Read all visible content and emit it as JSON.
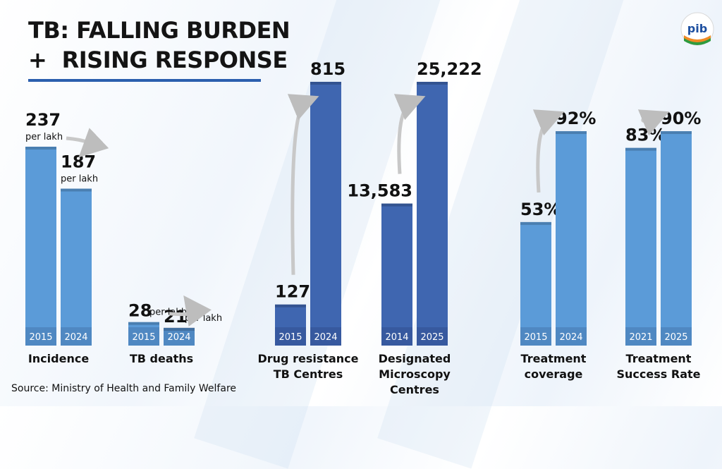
{
  "title_line1": "TB: FALLING BURDEN",
  "title_line2": "+  RISING RESPONSE",
  "source": "Source: Ministry of Health and Family Welfare",
  "logo_text": "pib",
  "colors": {
    "light_bar": "#5b9bd8",
    "dark_bar": "#3f66b0",
    "accent": "#2b5fae"
  },
  "chart_data": [
    {
      "type": "bar",
      "group": "Incidence",
      "category_lines": [
        "Incidence"
      ],
      "years": [
        "2015",
        "2024"
      ],
      "values": [
        237,
        187
      ],
      "labels": [
        "237",
        "187"
      ],
      "unit": "per lakh",
      "trend": "down"
    },
    {
      "type": "bar",
      "group": "TB deaths",
      "category_lines": [
        "TB deaths"
      ],
      "years": [
        "2015",
        "2024"
      ],
      "values": [
        28,
        21
      ],
      "labels": [
        "28",
        "21"
      ],
      "unit": "per lakh",
      "trend": "down"
    },
    {
      "type": "bar",
      "group": "Drug resistance TB Centres",
      "category_lines": [
        "Drug resistance",
        "TB Centres"
      ],
      "years": [
        "2015",
        "2024"
      ],
      "values": [
        127,
        815
      ],
      "labels": [
        "127",
        "815"
      ],
      "unit": "",
      "trend": "up"
    },
    {
      "type": "bar",
      "group": "Designated Microscopy Centres",
      "category_lines": [
        "Designated",
        "Microscopy",
        "Centres"
      ],
      "years": [
        "2014",
        "2025"
      ],
      "values": [
        13583,
        25222
      ],
      "labels": [
        "13,583",
        "25,222"
      ],
      "unit": "",
      "trend": "up"
    },
    {
      "type": "bar",
      "group": "Treatment coverage",
      "category_lines": [
        "Treatment",
        "coverage"
      ],
      "years": [
        "2015",
        "2024"
      ],
      "values": [
        53,
        92
      ],
      "labels": [
        "53%",
        "92%"
      ],
      "unit": "",
      "trend": "up"
    },
    {
      "type": "bar",
      "group": "Treatment Success Rate",
      "category_lines": [
        "Treatment",
        "Success Rate"
      ],
      "years": [
        "2021",
        "2025"
      ],
      "values": [
        83,
        90
      ],
      "labels": [
        "83%",
        "90%"
      ],
      "unit": "",
      "trend": "up"
    }
  ]
}
